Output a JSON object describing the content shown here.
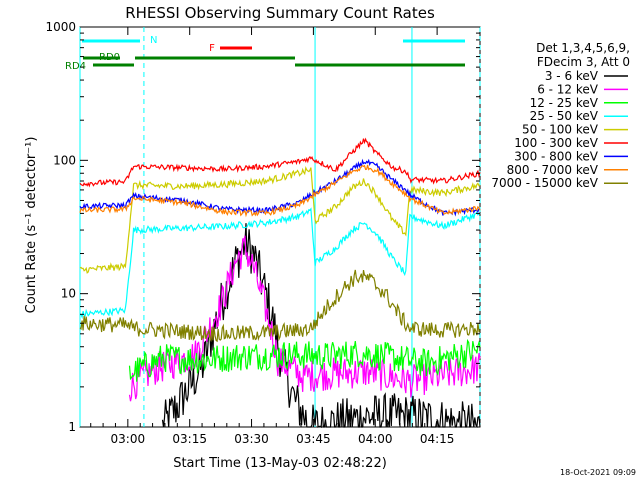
{
  "chart_data": {
    "type": "line",
    "title": "RHESSI Observing Summary Count Rates",
    "xlabel": "Start Time (13-May-03 02:48:22)",
    "ylabel": "Count Rate (s⁻¹ detector⁻¹)",
    "ylim": [
      1,
      1000
    ],
    "yscale": "log",
    "y_ticks": [
      "1",
      "10",
      "100",
      "1000"
    ],
    "x_minutes_range": [
      0,
      97
    ],
    "x_ticks": [
      {
        "label": "03:00",
        "min": 11.6
      },
      {
        "label": "03:15",
        "min": 26.6
      },
      {
        "label": "03:30",
        "min": 41.6
      },
      {
        "label": "03:45",
        "min": 56.6
      },
      {
        "label": "04:00",
        "min": 71.6
      },
      {
        "label": "04:15",
        "min": 86.6
      }
    ],
    "legend_header": [
      "Det 1,3,4,5,6,9,",
      "FDecim 3, Att 0"
    ],
    "series": [
      {
        "name": "3 - 6 keV",
        "color": "#000000",
        "points": [
          [
            20,
            1
          ],
          [
            24,
            1.5
          ],
          [
            30,
            3
          ],
          [
            34,
            8
          ],
          [
            38,
            18
          ],
          [
            40,
            24
          ],
          [
            42,
            20
          ],
          [
            46,
            8
          ],
          [
            49,
            3
          ],
          [
            52,
            1.6
          ],
          [
            56,
            1
          ],
          [
            70,
            1.2
          ],
          [
            80,
            1.2
          ],
          [
            97,
            1
          ]
        ]
      },
      {
        "name": "6 - 12 keV",
        "color": "#ff00ff",
        "points": [
          [
            12,
            2
          ],
          [
            18,
            2.7
          ],
          [
            28,
            3.5
          ],
          [
            34,
            8
          ],
          [
            38,
            18
          ],
          [
            40,
            22
          ],
          [
            42,
            16
          ],
          [
            46,
            6
          ],
          [
            48,
            3.2
          ],
          [
            54,
            2.4
          ],
          [
            60,
            2.5
          ],
          [
            70,
            2.6
          ],
          [
            80,
            2.2
          ],
          [
            90,
            2.5
          ],
          [
            97,
            2.8
          ]
        ]
      },
      {
        "name": "12 - 25 keV",
        "color": "#00ff00",
        "points": [
          [
            12,
            2.5
          ],
          [
            20,
            3.3
          ],
          [
            30,
            3.2
          ],
          [
            40,
            3.4
          ],
          [
            50,
            3.5
          ],
          [
            60,
            3.4
          ],
          [
            68,
            3.6
          ],
          [
            76,
            3.3
          ],
          [
            84,
            3
          ],
          [
            97,
            3.8
          ]
        ]
      },
      {
        "name": "25 - 50 keV",
        "color": "#00ffff",
        "points": [
          [
            0,
            7
          ],
          [
            11,
            7.5
          ],
          [
            13,
            30
          ],
          [
            25,
            31
          ],
          [
            35,
            32
          ],
          [
            45,
            34
          ],
          [
            53,
            38
          ],
          [
            56,
            42
          ],
          [
            57,
            17
          ],
          [
            62,
            22
          ],
          [
            66,
            30
          ],
          [
            69,
            34
          ],
          [
            72,
            28
          ],
          [
            76,
            18
          ],
          [
            79,
            14
          ],
          [
            80,
            38
          ],
          [
            88,
            32
          ],
          [
            97,
            40
          ]
        ]
      },
      {
        "name": "50 - 100 keV",
        "color": "#cccc00",
        "points": [
          [
            0,
            15
          ],
          [
            11,
            16
          ],
          [
            13,
            65
          ],
          [
            25,
            64
          ],
          [
            35,
            66
          ],
          [
            45,
            70
          ],
          [
            53,
            80
          ],
          [
            56,
            85
          ],
          [
            57,
            35
          ],
          [
            62,
            45
          ],
          [
            66,
            62
          ],
          [
            69,
            70
          ],
          [
            72,
            55
          ],
          [
            76,
            35
          ],
          [
            79,
            28
          ],
          [
            80,
            60
          ],
          [
            88,
            57
          ],
          [
            97,
            65
          ]
        ]
      },
      {
        "name": "100 - 300 keV",
        "color": "#ff0000",
        "points": [
          [
            0,
            67
          ],
          [
            11,
            69
          ],
          [
            13,
            90
          ],
          [
            25,
            88
          ],
          [
            35,
            86
          ],
          [
            45,
            90
          ],
          [
            53,
            98
          ],
          [
            56,
            104
          ],
          [
            62,
            85
          ],
          [
            66,
            115
          ],
          [
            69,
            142
          ],
          [
            72,
            112
          ],
          [
            76,
            88
          ],
          [
            79,
            83
          ],
          [
            80,
            72
          ],
          [
            88,
            70
          ],
          [
            97,
            80
          ]
        ]
      },
      {
        "name": "300 - 800 keV",
        "color": "#0000ff",
        "points": [
          [
            0,
            45
          ],
          [
            11,
            46
          ],
          [
            13,
            54
          ],
          [
            25,
            50
          ],
          [
            35,
            43
          ],
          [
            45,
            42
          ],
          [
            53,
            48
          ],
          [
            56,
            55
          ],
          [
            62,
            70
          ],
          [
            66,
            85
          ],
          [
            69,
            98
          ],
          [
            72,
            90
          ],
          [
            76,
            70
          ],
          [
            79,
            60
          ],
          [
            80,
            55
          ],
          [
            88,
            40
          ],
          [
            97,
            43
          ]
        ]
      },
      {
        "name": "800 - 7000 keV",
        "color": "#ff8000",
        "points": [
          [
            0,
            42
          ],
          [
            11,
            43
          ],
          [
            13,
            52
          ],
          [
            25,
            48
          ],
          [
            35,
            41
          ],
          [
            45,
            40
          ],
          [
            53,
            46
          ],
          [
            56,
            53
          ],
          [
            62,
            68
          ],
          [
            66,
            82
          ],
          [
            69,
            90
          ],
          [
            72,
            84
          ],
          [
            76,
            66
          ],
          [
            79,
            56
          ],
          [
            80,
            52
          ],
          [
            88,
            40
          ],
          [
            97,
            44
          ]
        ]
      },
      {
        "name": "7000 - 15000 keV",
        "color": "#808000",
        "points": [
          [
            0,
            6
          ],
          [
            11,
            5.8
          ],
          [
            13,
            5.5
          ],
          [
            25,
            5.2
          ],
          [
            35,
            5
          ],
          [
            45,
            5.1
          ],
          [
            53,
            5.3
          ],
          [
            56,
            5.5
          ],
          [
            60,
            8
          ],
          [
            64,
            11
          ],
          [
            67,
            13.5
          ],
          [
            70,
            13
          ],
          [
            74,
            10
          ],
          [
            78,
            6.5
          ],
          [
            80,
            5.5
          ],
          [
            88,
            5.3
          ],
          [
            97,
            5.5
          ]
        ]
      }
    ],
    "flags": {
      "N": {
        "label": "N",
        "color": "#00ffff",
        "segments": [
          [
            0,
            16
          ],
          [
            77,
            97
          ]
        ]
      },
      "F": {
        "label": "F",
        "color": "#ff0000",
        "segments": [
          [
            35,
            42
          ]
        ]
      },
      "RD0": {
        "label": "RD0",
        "color": "#008000",
        "segments": [
          [
            1,
            13
          ],
          [
            13,
            53
          ]
        ]
      },
      "RD4": {
        "label": "RD4",
        "color": "#008000",
        "segments": [
          [
            2,
            13
          ],
          [
            53,
            76
          ],
          [
            76,
            97
          ]
        ]
      }
    },
    "boundaries_min": [
      0,
      15.5,
      57,
      80.5,
      97
    ]
  },
  "footer": {
    "timestamp": "18-Oct-2021 09:09"
  }
}
